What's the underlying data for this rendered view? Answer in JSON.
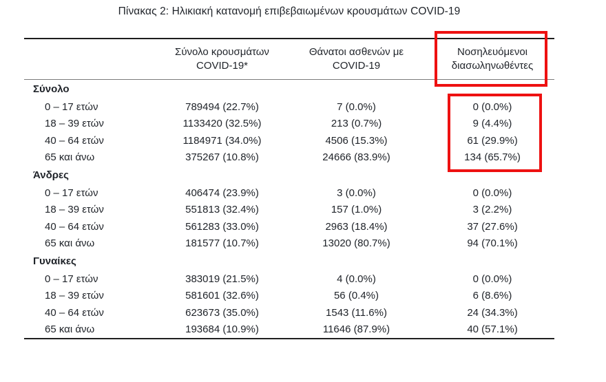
{
  "title": "Πίνακας 2: Ηλικιακή κατανομή επιβεβαιωμένων κρουσμάτων COVID-19",
  "colors": {
    "highlight": "#ee1111",
    "text": "#20242a"
  },
  "table": {
    "headers": [
      {
        "line1": "Σύνολο κρουσμάτων",
        "line2": "COVID-19*"
      },
      {
        "line1": "Θάνατοι ασθενών με",
        "line2": "COVID-19"
      },
      {
        "line1": "Νοσηλευόμενοι",
        "line2": "διασωληνωθέντες",
        "highlighted": true
      }
    ],
    "sections": [
      {
        "label": "Σύνολο",
        "rows": [
          {
            "age": "0 – 17 ετών",
            "cases": "789494 (22.7%)",
            "deaths": "7 (0.0%)",
            "intubated": "0 (0.0%)"
          },
          {
            "age": "18 – 39 ετών",
            "cases": "1133420 (32.5%)",
            "deaths": "213 (0.7%)",
            "intubated": "9 (4.4%)"
          },
          {
            "age": "40 – 64 ετών",
            "cases": "1184971 (34.0%)",
            "deaths": "4506 (15.3%)",
            "intubated": "61 (29.9%)"
          },
          {
            "age": "65 και άνω",
            "cases": "375267 (10.8%)",
            "deaths": "24666 (83.9%)",
            "intubated": "134 (65.7%)"
          }
        ]
      },
      {
        "label": "Άνδρες",
        "rows": [
          {
            "age": "0 – 17 ετών",
            "cases": "406474 (23.9%)",
            "deaths": "3 (0.0%)",
            "intubated": "0 (0.0%)"
          },
          {
            "age": "18 – 39 ετών",
            "cases": "551813 (32.4%)",
            "deaths": "157 (1.0%)",
            "intubated": "3 (2.2%)"
          },
          {
            "age": "40 – 64 ετών",
            "cases": "561283 (33.0%)",
            "deaths": "2963 (18.4%)",
            "intubated": "37 (27.6%)"
          },
          {
            "age": "65 και άνω",
            "cases": "181577 (10.7%)",
            "deaths": "13020 (80.7%)",
            "intubated": "94 (70.1%)"
          }
        ]
      },
      {
        "label": "Γυναίκες",
        "rows": [
          {
            "age": "0 – 17 ετών",
            "cases": "383019 (21.5%)",
            "deaths": "4 (0.0%)",
            "intubated": "0 (0.0%)"
          },
          {
            "age": "18 – 39 ετών",
            "cases": "581601 (32.6%)",
            "deaths": "56 (0.4%)",
            "intubated": "6 (8.6%)"
          },
          {
            "age": "40 – 64 ετών",
            "cases": "623673 (35.0%)",
            "deaths": "1543 (11.6%)",
            "intubated": "24 (34.3%)"
          },
          {
            "age": "65 και άνω",
            "cases": "193684 (10.9%)",
            "deaths": "11646 (87.9%)",
            "intubated": "40 (57.1%)"
          }
        ]
      }
    ]
  }
}
